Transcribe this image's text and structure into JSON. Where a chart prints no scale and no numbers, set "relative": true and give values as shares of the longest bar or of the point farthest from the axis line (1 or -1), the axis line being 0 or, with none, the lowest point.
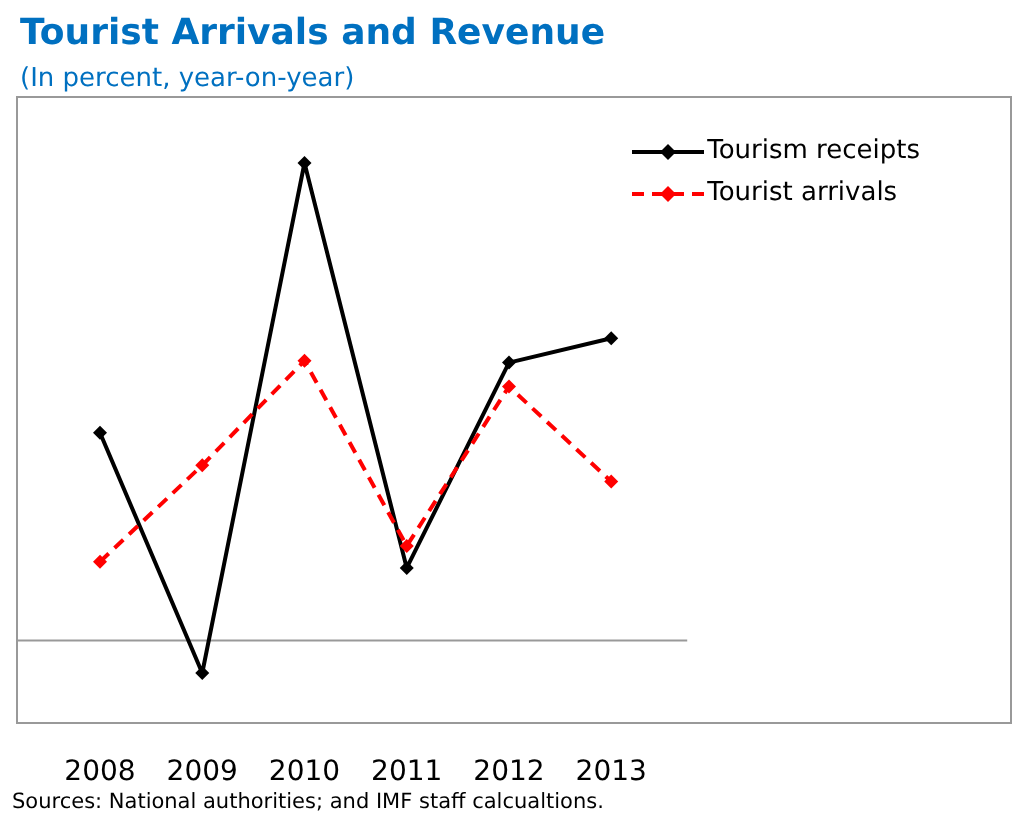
{
  "chart_data": {
    "type": "line",
    "title": "Tourist Arrivals and Revenue",
    "subtitle": "(In percent, year-on-year)",
    "relative": true,
    "categories": [
      "2008",
      "2009",
      "2010",
      "2011",
      "2012",
      "2013"
    ],
    "series": [
      {
        "name": "Tourism receipts",
        "color": "#000000",
        "line_style": "solid",
        "values": [
          0.435,
          -0.068,
          1,
          0.152,
          0.582,
          0.633
        ]
      },
      {
        "name": "Tourist arrivals",
        "color": "#ff0000",
        "line_style": "dashed",
        "values": [
          0.165,
          0.367,
          0.586,
          0.198,
          0.532,
          0.333
        ]
      }
    ],
    "marker": "diamond",
    "legend": "top right",
    "grid": false,
    "annotations": [
      "Sources: National authorities; and IMF staff calcualtions."
    ]
  }
}
